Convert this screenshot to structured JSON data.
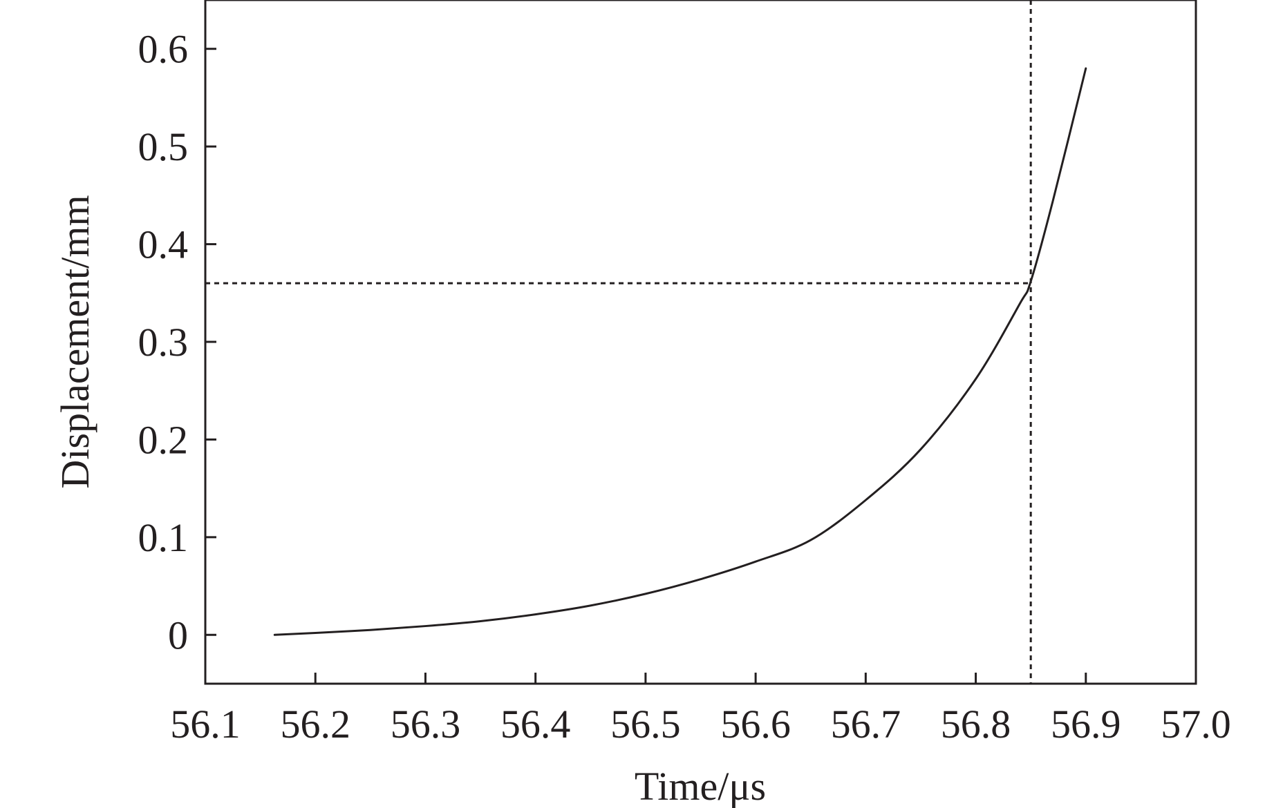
{
  "chart_data": {
    "type": "line",
    "title": "",
    "xlabel": "Time/μs",
    "ylabel": "Displacement/mm",
    "xlim": [
      56.1,
      57.0
    ],
    "ylim": [
      -0.05,
      0.65
    ],
    "x_ticks": [
      "56.1",
      "56.2",
      "56.3",
      "56.4",
      "56.5",
      "56.6",
      "56.7",
      "56.8",
      "56.9",
      "57.0"
    ],
    "y_ticks": [
      "0",
      "0.1",
      "0.2",
      "0.3",
      "0.4",
      "0.5",
      "0.6"
    ],
    "grid": false,
    "legend": "none",
    "series": [
      {
        "x": [
          56.163,
          56.2,
          56.25,
          56.3,
          56.35,
          56.4,
          56.45,
          56.5,
          56.55,
          56.6,
          56.65,
          56.7,
          56.75,
          56.8,
          56.84,
          56.85,
          56.87,
          56.9
        ],
        "y": [
          0.0,
          0.002,
          0.005,
          0.009,
          0.014,
          0.021,
          0.03,
          0.042,
          0.057,
          0.075,
          0.097,
          0.138,
          0.19,
          0.262,
          0.339,
          0.362,
          0.444,
          0.58
        ],
        "color": "#231f20"
      }
    ],
    "reference_lines": [
      {
        "orientation": "vertical",
        "x": 56.85,
        "style": "dotted"
      },
      {
        "orientation": "horizontal",
        "y": 0.36,
        "style": "dotted"
      }
    ]
  }
}
